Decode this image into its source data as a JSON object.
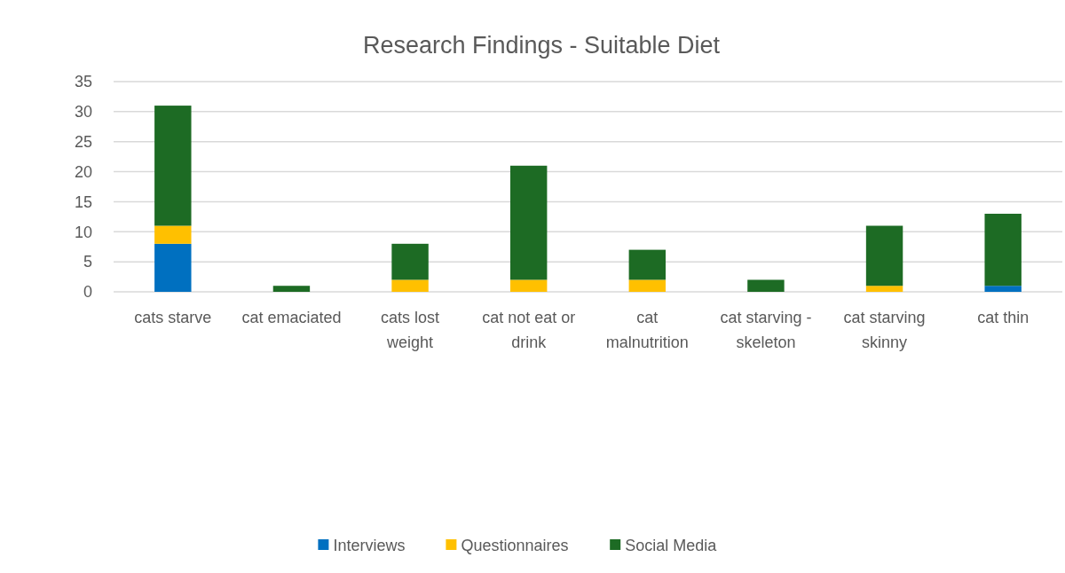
{
  "chart_data": {
    "type": "bar",
    "title": "Research Findings - Suitable Diet",
    "categories": [
      "cats starve",
      "cat emaciated",
      "cats lost weight",
      "cat not eat or drink",
      "cat malnutrition",
      "cat starving - skeleton",
      "cat starving skinny",
      "cat thin"
    ],
    "series": [
      {
        "name": "Interviews",
        "color": "#0070c0",
        "values": [
          8,
          0,
          0,
          0,
          0,
          0,
          0,
          1
        ]
      },
      {
        "name": "Questionnaires",
        "color": "#ffc000",
        "values": [
          3,
          0,
          2,
          2,
          2,
          0,
          1,
          0
        ]
      },
      {
        "name": "Social Media",
        "color": "#1d6b24",
        "values": [
          20,
          1,
          6,
          19,
          5,
          2,
          10,
          12
        ]
      }
    ],
    "stacked": true,
    "ylim": [
      0,
      35
    ],
    "yticks": [
      0,
      5,
      10,
      15,
      20,
      25,
      30,
      35
    ],
    "grid": "y",
    "legend": "bottom"
  }
}
